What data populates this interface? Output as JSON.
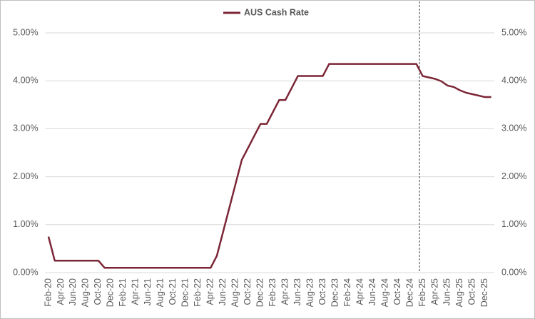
{
  "chart_data": {
    "type": "line",
    "categories": [
      "Feb-20",
      null,
      "Apr-20",
      null,
      "Jun-20",
      null,
      "Aug-20",
      null,
      "Oct-20",
      null,
      "Dec-20",
      null,
      "Feb-21",
      null,
      "Apr-21",
      null,
      "Jun-21",
      null,
      "Aug-21",
      null,
      "Oct-21",
      null,
      "Dec-21",
      null,
      "Feb-22",
      null,
      "Apr-22",
      null,
      "Jun-22",
      null,
      "Aug-22",
      null,
      "Oct-22",
      null,
      "Dec-22",
      null,
      "Feb-23",
      null,
      "Apr-23",
      null,
      "Jun-23",
      null,
      "Aug-23",
      null,
      "Oct-23",
      null,
      "Dec-23",
      null,
      "Feb-24",
      null,
      "Apr-24",
      null,
      "Jun-24",
      null,
      "Aug-24",
      null,
      "Oct-24",
      null,
      "Dec-24",
      null,
      "Feb-25",
      null,
      "Apr-25",
      null,
      "Jun-25",
      null,
      "Aug-25",
      null,
      "Oct-25",
      null,
      "Dec-25",
      null
    ],
    "series": [
      {
        "name": "AUS Cash Rate",
        "color": "#7b2636",
        "values": [
          0.75,
          0.25,
          0.25,
          0.25,
          0.25,
          0.25,
          0.25,
          0.25,
          0.25,
          0.1,
          0.1,
          0.1,
          0.1,
          0.1,
          0.1,
          0.1,
          0.1,
          0.1,
          0.1,
          0.1,
          0.1,
          0.1,
          0.1,
          0.1,
          0.1,
          0.1,
          0.1,
          0.35,
          0.85,
          1.35,
          1.85,
          2.35,
          2.6,
          2.85,
          3.1,
          3.1,
          3.35,
          3.6,
          3.6,
          3.85,
          4.1,
          4.1,
          4.1,
          4.1,
          4.1,
          4.35,
          4.35,
          4.35,
          4.35,
          4.35,
          4.35,
          4.35,
          4.35,
          4.35,
          4.35,
          4.35,
          4.35,
          4.35,
          4.35,
          4.35,
          4.1,
          4.07,
          4.04,
          3.99,
          3.9,
          3.87,
          3.8,
          3.75,
          3.72,
          3.69,
          3.66,
          3.66
        ]
      }
    ],
    "ylim": [
      0,
      5
    ],
    "yticks": [
      {
        "value": 0,
        "label": "0.00%"
      },
      {
        "value": 1,
        "label": "1.00%"
      },
      {
        "value": 2,
        "label": "2.00%"
      },
      {
        "value": 3,
        "label": "3.00%"
      },
      {
        "value": 4,
        "label": "4.00%"
      },
      {
        "value": 5,
        "label": "5.00%"
      }
    ],
    "y2lim": [
      0,
      5
    ],
    "y2ticks": [
      {
        "value": 0,
        "label": "0.00%"
      },
      {
        "value": 1,
        "label": "1.00%"
      },
      {
        "value": 2,
        "label": "2.00%"
      },
      {
        "value": 3,
        "label": "3.00%"
      },
      {
        "value": 4,
        "label": "4.00%"
      },
      {
        "value": 5,
        "label": "5.00%"
      }
    ],
    "grid": true,
    "legend": "top",
    "vline": "Feb-25"
  }
}
